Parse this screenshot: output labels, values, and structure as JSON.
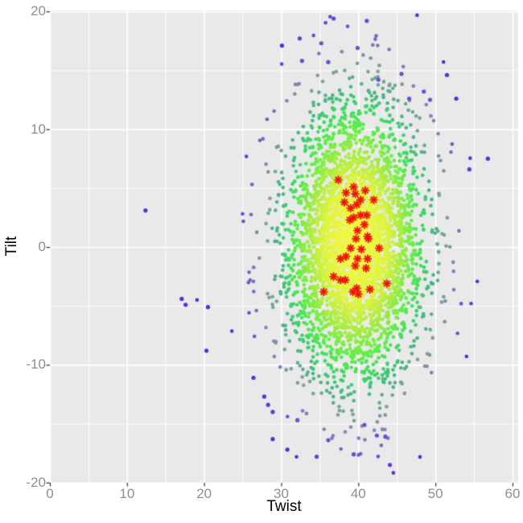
{
  "chart_data": {
    "type": "scatter",
    "title": "",
    "xlabel": "Twist",
    "ylabel": "Tilt",
    "xlim": [
      0,
      61
    ],
    "ylim": [
      -20,
      20
    ],
    "x_ticks": [
      0,
      10,
      20,
      30,
      40,
      50,
      60
    ],
    "y_ticks": [
      -20,
      -10,
      0,
      10,
      20
    ],
    "x_minor_gridlines": [
      5,
      15,
      25,
      35,
      45,
      55
    ],
    "y_minor_gridlines": [
      -15,
      -5,
      5,
      15
    ],
    "grid": "major and minor white gridlines on gray panel",
    "legend_position": "none",
    "panel_bg_color": "#E9E9E9",
    "grid_color": "#FFFFFF",
    "tick_label_color": "#8E8E8E",
    "tick_mark_color": "#333333",
    "axis_title_color": "#000000",
    "density_cloud": {
      "kind": "bivariate-normal-density-colored-points",
      "n_points": 3800,
      "mean": [
        39.6,
        0.4
      ],
      "sd": [
        4.45,
        5.7
      ],
      "seed": 7,
      "point_radius_px": 2.3,
      "palette_stops": [
        {
          "r": 0.0,
          "color": "#F7FA3E"
        },
        {
          "r": 0.9,
          "color": "#DEF43E"
        },
        {
          "r": 1.3,
          "color": "#AAED40"
        },
        {
          "r": 1.7,
          "color": "#5FEE46"
        },
        {
          "r": 2.0,
          "color": "#3CD963"
        },
        {
          "r": 2.3,
          "color": "#47B586"
        },
        {
          "r": 2.6,
          "color": "#7DA29B"
        },
        {
          "r": 2.9,
          "color": "#7E85B2"
        },
        {
          "r": 3.2,
          "color": "#6E58CF"
        },
        {
          "r": 3.6,
          "color": "#5C2AD8"
        }
      ]
    },
    "outlier_points": [
      [
        36.8,
        19.4
      ],
      [
        41.1,
        19.2
      ],
      [
        32.4,
        17.7
      ],
      [
        35.2,
        17.3
      ],
      [
        30.1,
        17.1
      ],
      [
        39.9,
        16.9
      ],
      [
        32.7,
        15.8
      ],
      [
        36.1,
        15.7
      ],
      [
        45.6,
        14.7
      ],
      [
        42.6,
        14.2
      ],
      [
        46.6,
        12.6
      ],
      [
        51.5,
        14.6
      ],
      [
        52.7,
        12.6
      ],
      [
        48.5,
        13.2
      ],
      [
        49.3,
        12.5
      ],
      [
        56.8,
        7.5
      ],
      [
        54.4,
        6.6
      ],
      [
        28.9,
        -16.3
      ],
      [
        30.8,
        -17.2
      ],
      [
        34.6,
        -17.8
      ],
      [
        39.4,
        -17.6
      ],
      [
        44.1,
        -18.5
      ],
      [
        36.1,
        -16.4
      ],
      [
        42.4,
        -16.0
      ],
      [
        43.5,
        -16.1
      ],
      [
        40.8,
        -15.1
      ],
      [
        32.1,
        -14.7
      ],
      [
        28.9,
        -14.0
      ],
      [
        12.4,
        3.1
      ],
      [
        17.1,
        -4.4
      ],
      [
        17.6,
        -4.9
      ],
      [
        20.5,
        -5.1
      ],
      [
        20.3,
        -8.8
      ],
      [
        26.4,
        -11.1
      ],
      [
        27.8,
        -12.7
      ],
      [
        28.3,
        -13.4
      ]
    ],
    "outlier_color": "#5C2AD8",
    "star_points": [
      [
        37.4,
        5.7
      ],
      [
        39.4,
        5.1
      ],
      [
        38.4,
        4.6
      ],
      [
        39.6,
        4.5
      ],
      [
        40.9,
        4.8
      ],
      [
        40.3,
        4.0
      ],
      [
        38.2,
        3.8
      ],
      [
        42.0,
        4.0
      ],
      [
        39.0,
        3.3
      ],
      [
        39.8,
        3.6
      ],
      [
        39.4,
        2.5
      ],
      [
        40.3,
        2.7
      ],
      [
        41.1,
        2.7
      ],
      [
        38.9,
        2.3
      ],
      [
        40.8,
        1.9
      ],
      [
        39.9,
        1.4
      ],
      [
        41.2,
        0.9
      ],
      [
        39.7,
        0.7
      ],
      [
        41.3,
        0.7
      ],
      [
        39.0,
        -0.1
      ],
      [
        40.4,
        -0.2
      ],
      [
        42.7,
        -0.1
      ],
      [
        37.7,
        -1.0
      ],
      [
        38.4,
        -0.8
      ],
      [
        39.9,
        -1.0
      ],
      [
        41.2,
        -1.0
      ],
      [
        39.6,
        -1.6
      ],
      [
        41.0,
        -1.8
      ],
      [
        36.8,
        -2.5
      ],
      [
        37.7,
        -2.8
      ],
      [
        38.3,
        -2.8
      ],
      [
        43.7,
        -3.1
      ],
      [
        39.8,
        -3.5
      ],
      [
        39.3,
        -3.8
      ],
      [
        35.5,
        -3.8
      ],
      [
        40.0,
        -4.0
      ],
      [
        41.5,
        -3.6
      ]
    ],
    "star_color": "#EE1407",
    "star_marker": "8-spoke-asterisk"
  }
}
